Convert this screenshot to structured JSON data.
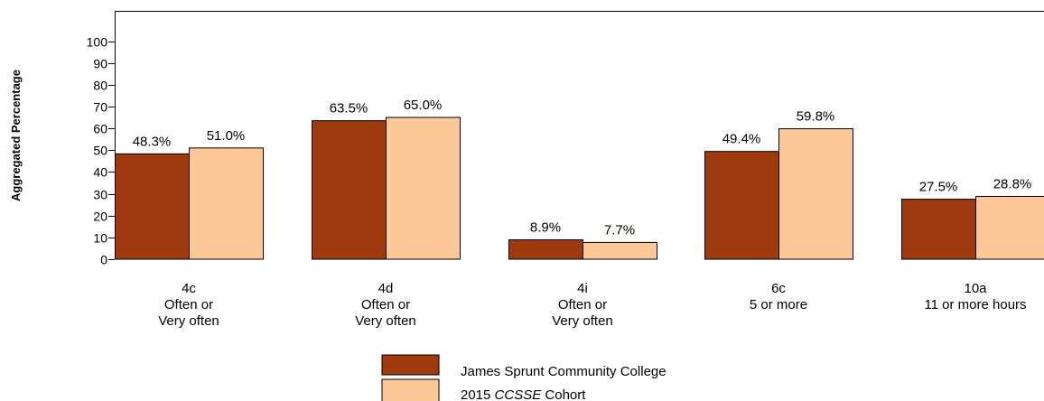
{
  "chart_data": {
    "type": "bar",
    "ylabel": "Aggregated Percentage",
    "ylim": [
      0,
      100
    ],
    "yticks": [
      0,
      10,
      20,
      30,
      40,
      50,
      60,
      70,
      80,
      90,
      100
    ],
    "categories": [
      [
        "4c",
        "Often or",
        "Very often"
      ],
      [
        "4d",
        "Often or",
        "Very often"
      ],
      [
        "4i",
        "Often or",
        "Very often"
      ],
      [
        "6c",
        "5 or more"
      ],
      [
        "10a",
        "11 or more hours"
      ]
    ],
    "series": [
      {
        "name": "James Sprunt Community College",
        "color": "#9E3A0E",
        "values": [
          48.3,
          63.5,
          8.9,
          49.4,
          27.5
        ],
        "labels": [
          "48.3%",
          "63.5%",
          "8.9%",
          "49.4%",
          "27.5%"
        ]
      },
      {
        "name_parts": [
          "2015 ",
          "CCSSE",
          " Cohort"
        ],
        "color": "#FDC898",
        "values": [
          51.0,
          65.0,
          7.7,
          59.8,
          28.8
        ],
        "labels": [
          "51.0%",
          "65.0%",
          "7.7%",
          "59.8%",
          "28.8%"
        ]
      }
    ],
    "grid": false,
    "legend_position": "bottom-center"
  }
}
